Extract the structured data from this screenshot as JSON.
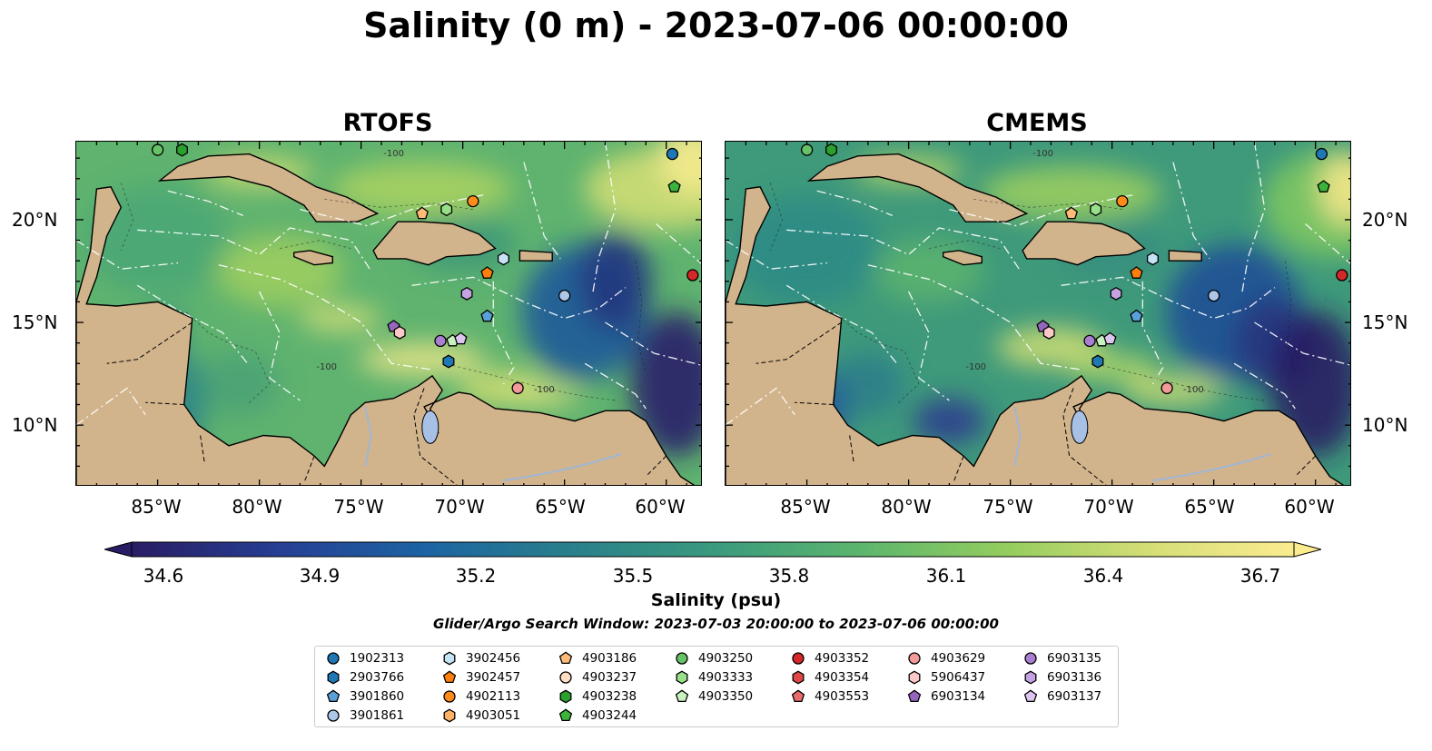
{
  "title": "Salinity (0 m) - 2023-07-06 00:00:00",
  "panels": [
    {
      "title": "RTOFS"
    },
    {
      "title": "CMEMS"
    }
  ],
  "axes": {
    "x_ticks": [
      "85°W",
      "80°W",
      "75°W",
      "70°W",
      "65°W",
      "60°W"
    ],
    "y_ticks": [
      "20°N",
      "15°N",
      "10°N"
    ]
  },
  "colorbar": {
    "label": "Salinity (psu)",
    "ticks": [
      "34.6",
      "34.9",
      "35.2",
      "35.5",
      "35.8",
      "36.1",
      "36.4",
      "36.7"
    ],
    "range": [
      34.6,
      36.7
    ],
    "colors": [
      "#281d64",
      "#263e93",
      "#1c63a3",
      "#297f8c",
      "#3a9a7e",
      "#5bb56e",
      "#93cc5e",
      "#d5de76",
      "#fbec8f"
    ]
  },
  "contour_labels": [
    "-100",
    "-1000",
    "-100"
  ],
  "search_window": "Glider/Argo Search Window: 2023-07-03 20:00:00 to 2023-07-06 00:00:00",
  "legend": [
    {
      "id": "1902313",
      "color": "#1f77b4",
      "marker": "circle"
    },
    {
      "id": "2903766",
      "color": "#1f77b4",
      "marker": "hexagon"
    },
    {
      "id": "3901860",
      "color": "#5aa0d8",
      "marker": "pentagon"
    },
    {
      "id": "3901861",
      "color": "#aec7e8",
      "marker": "circle"
    },
    {
      "id": "3902456",
      "color": "#c6e2f5",
      "marker": "hexagon"
    },
    {
      "id": "3902457",
      "color": "#ff7f0e",
      "marker": "pentagon"
    },
    {
      "id": "4902113",
      "color": "#ff8c1a",
      "marker": "circle"
    },
    {
      "id": "4903051",
      "color": "#ffb266",
      "marker": "hexagon"
    },
    {
      "id": "4903186",
      "color": "#ffbb78",
      "marker": "pentagon"
    },
    {
      "id": "4903237",
      "color": "#ffe0c2",
      "marker": "circle"
    },
    {
      "id": "4903238",
      "color": "#2ca02c",
      "marker": "hexagon"
    },
    {
      "id": "4903244",
      "color": "#3cb43c",
      "marker": "pentagon"
    },
    {
      "id": "4903250",
      "color": "#66c266",
      "marker": "circle"
    },
    {
      "id": "4903333",
      "color": "#98df8a",
      "marker": "hexagon"
    },
    {
      "id": "4903350",
      "color": "#c8f2c0",
      "marker": "pentagon"
    },
    {
      "id": "4903352",
      "color": "#d62728",
      "marker": "circle"
    },
    {
      "id": "4903354",
      "color": "#e04848",
      "marker": "hexagon"
    },
    {
      "id": "4903553",
      "color": "#e86a6a",
      "marker": "pentagon"
    },
    {
      "id": "4903629",
      "color": "#f29a9a",
      "marker": "circle"
    },
    {
      "id": "5906437",
      "color": "#ffc8c8",
      "marker": "hexagon"
    },
    {
      "id": "6903134",
      "color": "#9467bd",
      "marker": "pentagon"
    },
    {
      "id": "6903135",
      "color": "#a97fd2",
      "marker": "circle"
    },
    {
      "id": "6903136",
      "color": "#c5a3e3",
      "marker": "hexagon"
    },
    {
      "id": "6903137",
      "color": "#dcc6f0",
      "marker": "pentagon"
    }
  ],
  "floats": [
    {
      "id": "1902313",
      "lon": -59.7,
      "lat": 23.2
    },
    {
      "id": "4903244",
      "lon": -59.6,
      "lat": 21.6
    },
    {
      "id": "4903352",
      "lon": -58.7,
      "lat": 17.3
    },
    {
      "id": "4903250",
      "lon": -85.0,
      "lat": 23.4
    },
    {
      "id": "4903238",
      "lon": -83.8,
      "lat": 23.4
    },
    {
      "id": "4902113",
      "lon": -69.5,
      "lat": 20.9
    },
    {
      "id": "4903186",
      "lon": -72.0,
      "lat": 20.3
    },
    {
      "id": "4903333",
      "lon": -70.8,
      "lat": 20.5
    },
    {
      "id": "3902456",
      "lon": -68.0,
      "lat": 18.1
    },
    {
      "id": "3902457",
      "lon": -68.8,
      "lat": 17.4
    },
    {
      "id": "6903136",
      "lon": -69.8,
      "lat": 16.4
    },
    {
      "id": "3901861",
      "lon": -65.0,
      "lat": 16.3
    },
    {
      "id": "3901860",
      "lon": -68.8,
      "lat": 15.3
    },
    {
      "id": "6903134",
      "lon": -73.4,
      "lat": 14.8
    },
    {
      "id": "5906437",
      "lon": -73.1,
      "lat": 14.5
    },
    {
      "id": "6903135",
      "lon": -71.1,
      "lat": 14.1
    },
    {
      "id": "4903350",
      "lon": -70.5,
      "lat": 14.1
    },
    {
      "id": "6903137",
      "lon": -70.1,
      "lat": 14.2
    },
    {
      "id": "2903766",
      "lon": -70.7,
      "lat": 13.1
    },
    {
      "id": "4903629",
      "lon": -67.3,
      "lat": 11.8
    }
  ]
}
